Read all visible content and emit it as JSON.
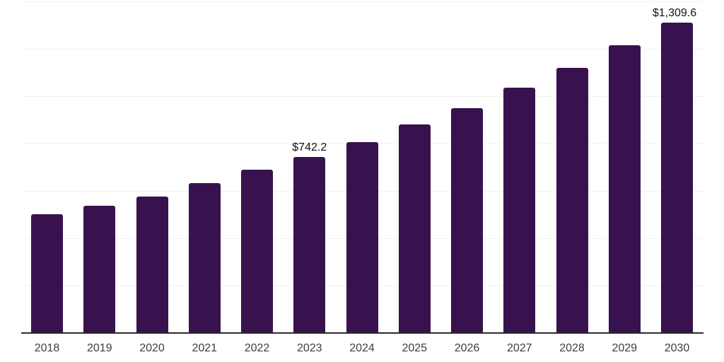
{
  "chart_data": {
    "type": "bar",
    "title": "",
    "xlabel": "",
    "ylabel": "",
    "categories": [
      "2018",
      "2019",
      "2020",
      "2021",
      "2022",
      "2023",
      "2024",
      "2025",
      "2026",
      "2027",
      "2028",
      "2029",
      "2030"
    ],
    "values": [
      501,
      537,
      575,
      633,
      690,
      742.2,
      806,
      880,
      949,
      1036,
      1119,
      1215,
      1309.6
    ],
    "data_labels": [
      "",
      "",
      "",
      "",
      "",
      "$742.2",
      "",
      "",
      "",
      "",
      "",
      "",
      "$1,309.6"
    ],
    "ylim": [
      0,
      1400
    ],
    "grid_step": 200,
    "grid": true,
    "legend": false,
    "y_tick_labels_visible": false,
    "colors": {
      "bar": "#38124e",
      "axis_line": "#2b2b2b",
      "gridline": "#f1f1f1",
      "data_label_text": "#111111",
      "x_tick_text": "#3d3d3d",
      "background": "#ffffff"
    }
  }
}
